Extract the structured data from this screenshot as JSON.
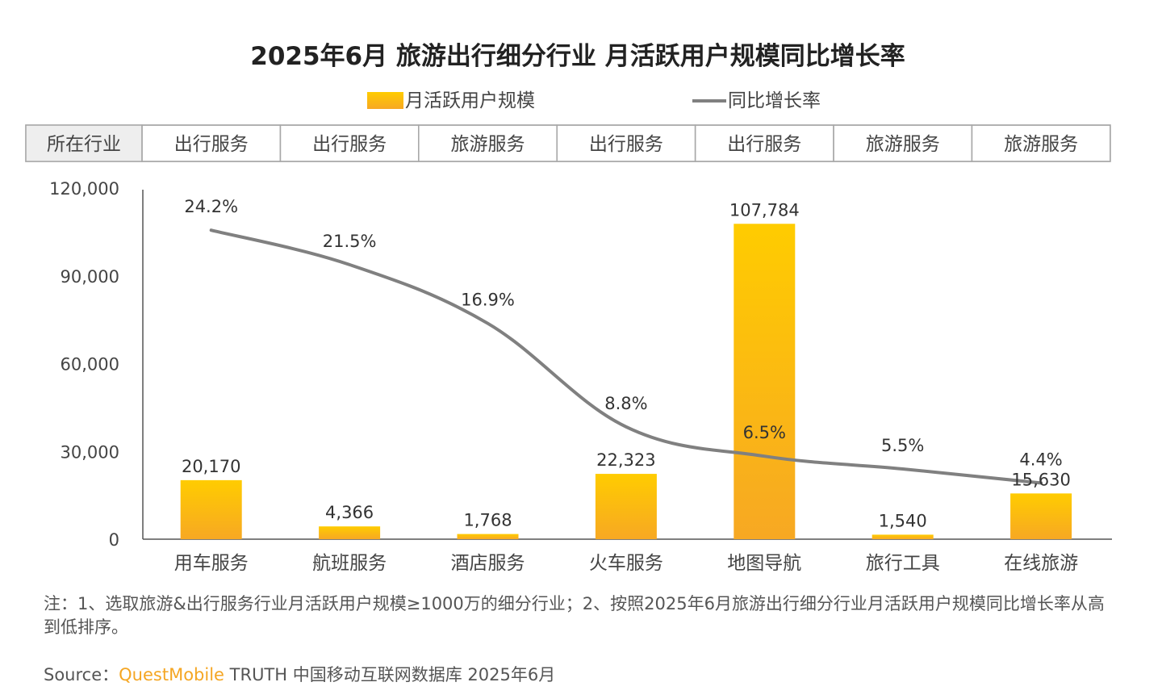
{
  "chart_data": {
    "type": "bar",
    "title": "2025年6月 旅游出行细分行业 月活跃用户规模同比增长率",
    "legend": [
      "月活跃用户规模",
      "同比增长率"
    ],
    "row_label": "所在行业",
    "industries": [
      "出行服务",
      "出行服务",
      "旅游服务",
      "出行服务",
      "出行服务",
      "旅游服务",
      "旅游服务"
    ],
    "categories": [
      "用车服务",
      "航班服务",
      "酒店服务",
      "火车服务",
      "地图导航",
      "旅行工具",
      "在线旅游"
    ],
    "bar_labels": [
      "20,170",
      "4,366",
      "1,768",
      "22,323",
      "107,784",
      "1,540",
      "15,630"
    ],
    "line_labels": [
      "24.2%",
      "21.5%",
      "16.9%",
      "8.8%",
      "6.5%",
      "5.5%",
      "4.4%"
    ],
    "yticks": [
      "0",
      "30,000",
      "60,000",
      "90,000",
      "120,000"
    ],
    "series": [
      {
        "name": "月活跃用户规模",
        "type": "bar",
        "values": [
          20170,
          4366,
          1768,
          22323,
          107784,
          1540,
          15630
        ]
      },
      {
        "name": "同比增长率",
        "type": "line",
        "values": [
          24.2,
          21.5,
          16.9,
          8.8,
          6.5,
          5.5,
          4.4
        ]
      }
    ],
    "ylim": [
      0,
      120000
    ],
    "legend_position": "top-center",
    "grid": false
  },
  "colors": {
    "bar_top": "#ffcc00",
    "bar_bottom": "#f7a823",
    "line": "#808080",
    "table_border": "#a8a8a8",
    "header_fill": "#eeeeee",
    "brand": "#f5a623"
  },
  "note": "注：1、选取旅游&出行服务行业月活跃用户规模≥1000万的细分行业；2、按照2025年6月旅游出行细分行业月活跃用户规模同比增长率从高到低排序。",
  "source": {
    "prefix": "Source：",
    "brand": "QuestMobile",
    "suffix": " TRUTH 中国移动互联网数据库 2025年6月"
  }
}
